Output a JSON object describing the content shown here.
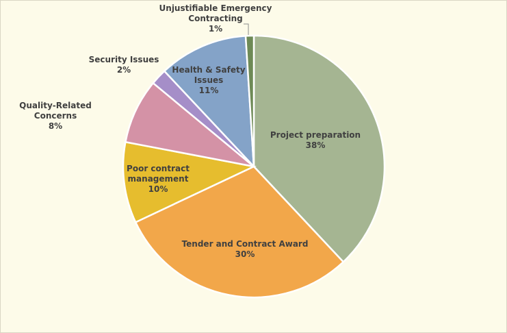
{
  "chart_data": {
    "type": "pie",
    "title": "",
    "slices": [
      {
        "name": "Project preparation",
        "value": 38,
        "label": "38%",
        "color": "#a5b592"
      },
      {
        "name": "Tender and Contract Award",
        "value": 30,
        "label": "30%",
        "color": "#f2a74a"
      },
      {
        "name": "Poor contract management",
        "value": 10,
        "label": "10%",
        "color": "#e6bd2e"
      },
      {
        "name": "Quality-Related Concerns",
        "value": 8,
        "label": "8%",
        "color": "#d492a6"
      },
      {
        "name": "Security Issues",
        "value": 2,
        "label": "2%",
        "color": "#a58ec8"
      },
      {
        "name": "Health & Safety Issues",
        "value": 11,
        "label": "11%",
        "color": "#84a3c8"
      },
      {
        "name": "Unjustifiable Emergency Contracting",
        "value": 1,
        "label": "1%",
        "color": "#6e8a56"
      }
    ],
    "legend": "none",
    "data_labels": "category name and percentage"
  }
}
